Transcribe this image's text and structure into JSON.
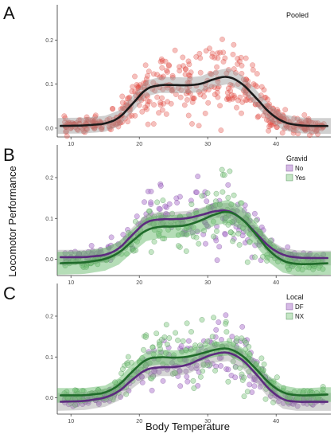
{
  "figure": {
    "xlabel": "Body Temperature",
    "ylabel": "Locomotor Performance"
  },
  "chart_data": [
    {
      "panel": "A",
      "type": "scatter",
      "title": "Pooled",
      "xlim": [
        8,
        48
      ],
      "ylim": [
        -0.02,
        0.28
      ],
      "xticks": [
        "10",
        "20",
        "30",
        "40"
      ],
      "yticks": [
        "0.0",
        "0.1",
        "0.2"
      ],
      "legend": null,
      "series": [
        {
          "color": "#d9473f",
          "fill": "rgba(225,75,65,0.35)",
          "curve": {
            "x": [
              8,
              12,
              15,
              17,
              19,
              21,
              23,
              25,
              27,
              29,
              31,
              33,
              35,
              37,
              39,
              41,
              43,
              45,
              47
            ],
            "y": [
              0.005,
              0.006,
              0.01,
              0.022,
              0.055,
              0.09,
              0.098,
              0.098,
              0.097,
              0.1,
              0.112,
              0.118,
              0.102,
              0.07,
              0.035,
              0.014,
              0.007,
              0.005,
              0.005
            ]
          },
          "band": 0.018
        }
      ],
      "curve_color": "#1a1a1a"
    },
    {
      "panel": "B",
      "type": "scatter",
      "title": "Gravid",
      "xlim": [
        8,
        48
      ],
      "ylim": [
        -0.04,
        0.28
      ],
      "xticks": [
        "10",
        "20",
        "30",
        "40"
      ],
      "yticks": [
        "0.0",
        "0.1",
        "0.2"
      ],
      "legend": {
        "title": "Gravid",
        "items": [
          "No",
          "Yes"
        ]
      },
      "series": [
        {
          "name": "No",
          "color": "#5c2a7e",
          "fill": "rgba(180,130,210,0.55)",
          "curve": {
            "x": [
              8,
              12,
              15,
              17,
              19,
              21,
              23,
              25,
              27,
              29,
              31,
              33,
              35,
              37,
              39,
              41,
              43,
              45,
              47
            ],
            "y": [
              0.005,
              0.005,
              0.01,
              0.025,
              0.06,
              0.092,
              0.098,
              0.098,
              0.1,
              0.108,
              0.118,
              0.12,
              0.1,
              0.065,
              0.03,
              0.01,
              0.004,
              0.003,
              0.003
            ]
          },
          "band": 0.018
        },
        {
          "name": "Yes",
          "color": "#1f6b2a",
          "fill": "rgba(150,210,150,0.55)",
          "curve": {
            "x": [
              8,
              12,
              15,
              17,
              19,
              21,
              23,
              25,
              27,
              29,
              31,
              33,
              35,
              37,
              39,
              41,
              43,
              45,
              47
            ],
            "y": [
              -0.01,
              -0.008,
              0.0,
              0.015,
              0.045,
              0.072,
              0.08,
              0.08,
              0.083,
              0.095,
              0.11,
              0.118,
              0.1,
              0.062,
              0.02,
              -0.005,
              -0.012,
              -0.012,
              -0.01
            ]
          },
          "band": 0.028
        }
      ]
    },
    {
      "panel": "C",
      "type": "scatter",
      "title": "Local",
      "xlim": [
        8,
        48
      ],
      "ylim": [
        -0.04,
        0.28
      ],
      "xticks": [
        "10",
        "20",
        "30",
        "40"
      ],
      "yticks": [
        "0.0",
        "0.1",
        "0.2"
      ],
      "legend": {
        "title": "Local",
        "items": [
          "DF",
          "NX"
        ]
      },
      "series": [
        {
          "name": "DF",
          "color": "#5c2a7e",
          "fill": "rgba(180,130,210,0.55)",
          "curve": {
            "x": [
              8,
              12,
              15,
              17,
              19,
              21,
              23,
              25,
              27,
              29,
              31,
              33,
              35,
              37,
              39,
              41,
              43,
              45,
              47
            ],
            "y": [
              -0.01,
              -0.008,
              0.0,
              0.015,
              0.045,
              0.07,
              0.075,
              0.075,
              0.08,
              0.095,
              0.108,
              0.112,
              0.095,
              0.06,
              0.02,
              -0.005,
              -0.01,
              -0.01,
              -0.01
            ]
          },
          "band": 0.022
        },
        {
          "name": "NX",
          "color": "#1f6b2a",
          "fill": "rgba(150,210,150,0.55)",
          "curve": {
            "x": [
              8,
              12,
              15,
              17,
              19,
              21,
              23,
              25,
              27,
              29,
              31,
              33,
              35,
              37,
              39,
              41,
              43,
              45,
              47
            ],
            "y": [
              0.006,
              0.006,
              0.012,
              0.03,
              0.065,
              0.095,
              0.1,
              0.098,
              0.1,
              0.108,
              0.118,
              0.122,
              0.105,
              0.072,
              0.035,
              0.012,
              0.006,
              0.006,
              0.008
            ]
          },
          "band": 0.018
        }
      ]
    }
  ]
}
